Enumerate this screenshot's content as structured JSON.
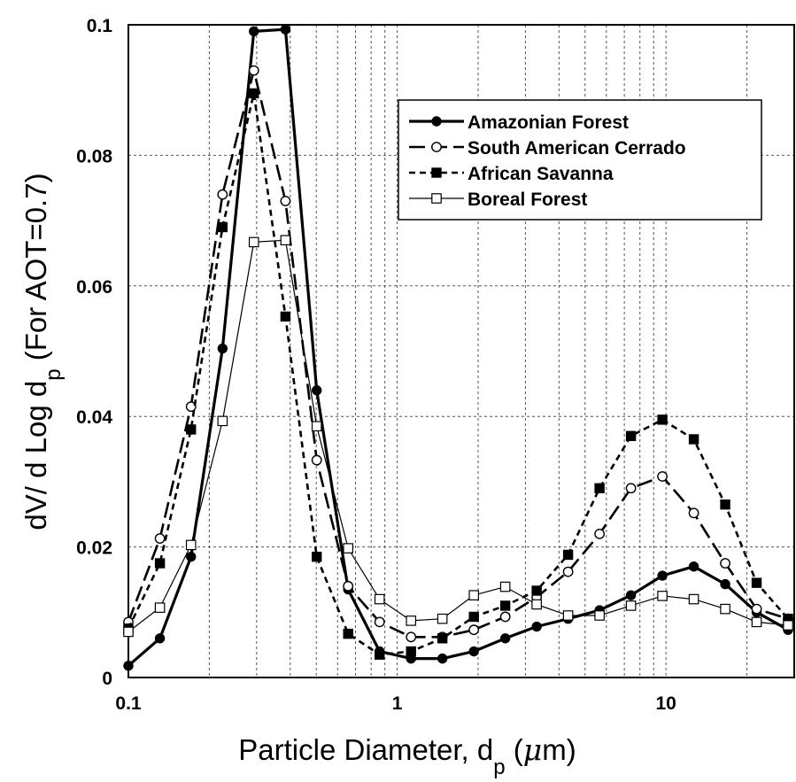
{
  "chart_data": {
    "type": "line",
    "xscale": "log",
    "xlim": [
      0.1,
      30
    ],
    "ylim": [
      0,
      0.1
    ],
    "grid": true,
    "legend_position": "top-right",
    "xlabel": {
      "main": "Particle Diameter, d",
      "sub": "p",
      "unit_open": " (",
      "mu": "μ",
      "unit_rest": "m)"
    },
    "ylabel": {
      "main": "dV/ d Log d",
      "sub": "p",
      "rest": " (For AOT=0.7)"
    },
    "x_ticks": [
      {
        "value": 0.1,
        "label": "0.1"
      },
      {
        "value": 1,
        "label": "1"
      },
      {
        "value": 10,
        "label": "10"
      }
    ],
    "y_ticks": [
      {
        "value": 0,
        "label": "0"
      },
      {
        "value": 0.02,
        "label": "0.02"
      },
      {
        "value": 0.04,
        "label": "0.04"
      },
      {
        "value": 0.06,
        "label": "0.06"
      },
      {
        "value": 0.08,
        "label": "0.08"
      },
      {
        "value": 0.1,
        "label": "0.1"
      }
    ],
    "x": [
      0.1,
      0.131,
      0.171,
      0.224,
      0.293,
      0.384,
      0.502,
      0.657,
      0.86,
      1.126,
      1.473,
      1.929,
      2.524,
      3.304,
      4.324,
      5.66,
      7.408,
      9.696,
      12.69,
      16.61,
      21.74,
      28.46
    ],
    "series": [
      {
        "name": "Amazonian Forest",
        "color": "#000000",
        "stroke_width": 3.2,
        "dash": "",
        "marker": "filled-circle",
        "values": [
          0.0018,
          0.006,
          0.0185,
          0.0504,
          0.099,
          0.0993,
          0.044,
          0.0135,
          0.004,
          0.0029,
          0.0029,
          0.004,
          0.006,
          0.0078,
          0.009,
          0.0103,
          0.0126,
          0.0156,
          0.017,
          0.0143,
          0.01,
          0.0073
        ]
      },
      {
        "name": "South American Cerrado",
        "color": "#000000",
        "stroke_width": 2.6,
        "dash": "18,7",
        "marker": "open-circle",
        "values": [
          0.0085,
          0.0213,
          0.0415,
          0.074,
          0.093,
          0.073,
          0.0333,
          0.014,
          0.0085,
          0.0062,
          0.0062,
          0.0073,
          0.0093,
          0.0123,
          0.0162,
          0.022,
          0.029,
          0.0308,
          0.0252,
          0.0175,
          0.0105,
          0.009
        ]
      },
      {
        "name": "African Savanna",
        "color": "#000000",
        "stroke_width": 2.6,
        "dash": "7,5",
        "marker": "filled-square",
        "values": [
          0.0075,
          0.0175,
          0.038,
          0.069,
          0.0895,
          0.0553,
          0.0185,
          0.0067,
          0.0035,
          0.004,
          0.006,
          0.0093,
          0.011,
          0.0133,
          0.0188,
          0.029,
          0.037,
          0.0395,
          0.0365,
          0.0265,
          0.0145,
          0.009
        ]
      },
      {
        "name": "Boreal Forest",
        "color": "#000000",
        "stroke_width": 1.2,
        "dash": "",
        "marker": "open-square",
        "values": [
          0.007,
          0.0107,
          0.0203,
          0.0393,
          0.0667,
          0.067,
          0.0385,
          0.0198,
          0.012,
          0.0087,
          0.009,
          0.0126,
          0.0139,
          0.0112,
          0.0095,
          0.0095,
          0.011,
          0.0125,
          0.012,
          0.0105,
          0.0085,
          0.008
        ]
      }
    ]
  }
}
